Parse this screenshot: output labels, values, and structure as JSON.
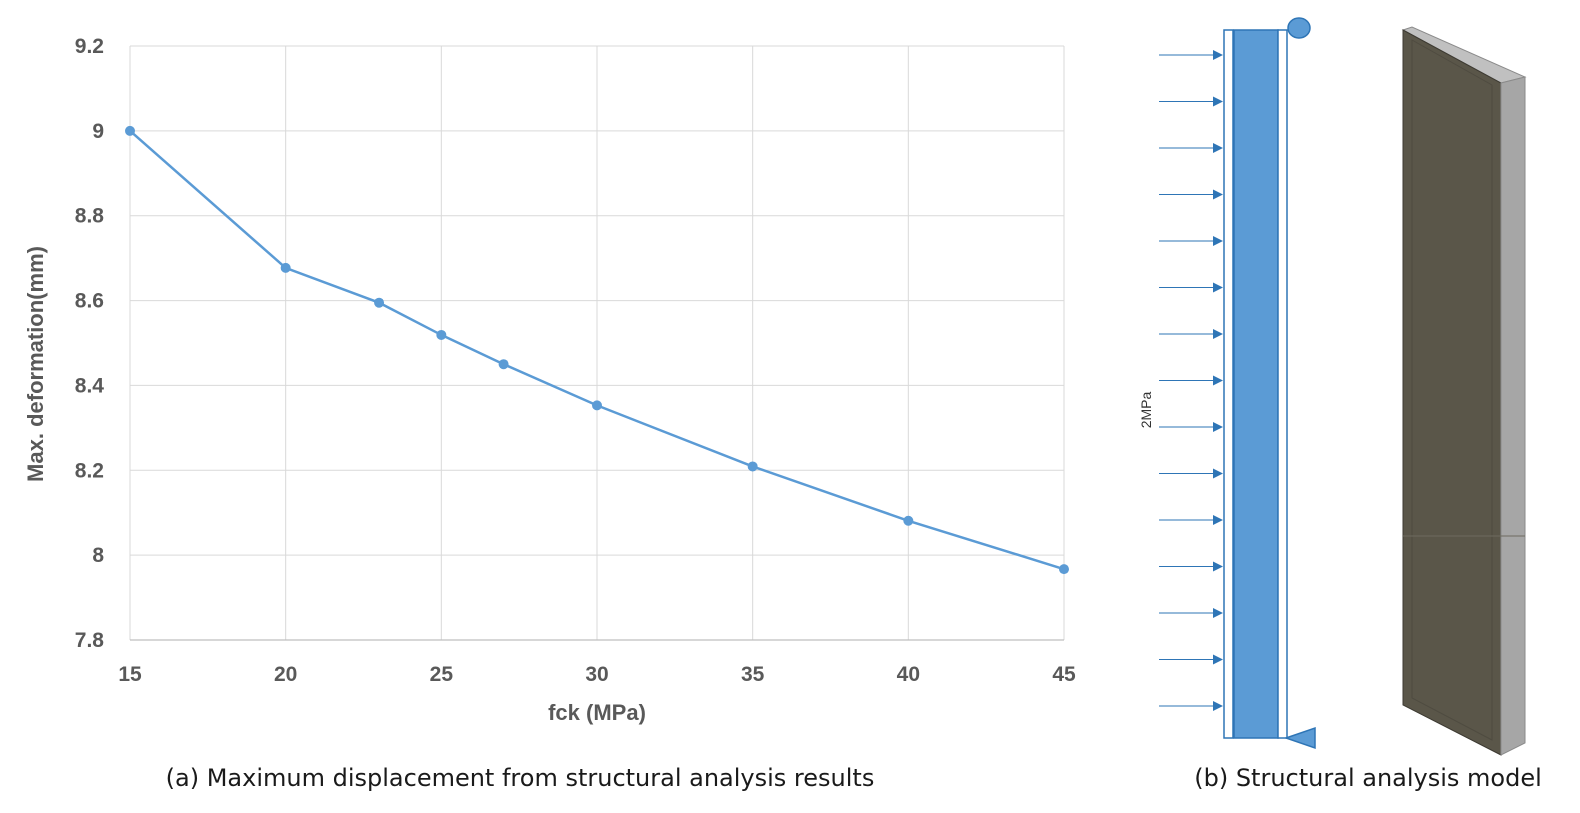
{
  "chart_data": {
    "type": "line",
    "x": [
      15,
      20,
      23,
      25,
      27,
      30,
      35,
      40,
      45
    ],
    "values": [
      9.0,
      8.677,
      8.595,
      8.519,
      8.45,
      8.353,
      8.209,
      8.081,
      7.967
    ],
    "xlabel": "fck (MPa)",
    "ylabel": "Max. deformation(mm)",
    "xlim": [
      15,
      45
    ],
    "ylim": [
      7.8,
      9.2
    ],
    "x_ticks": [
      "15",
      "20",
      "25",
      "30",
      "35",
      "40",
      "45"
    ],
    "y_ticks": [
      "7.8",
      "8",
      "8.2",
      "8.4",
      "8.6",
      "8.8",
      "9",
      "9.2"
    ],
    "grid": true,
    "line_color": "#5b9bd5",
    "grid_color": "#d9d9d9"
  },
  "captions": {
    "left": "(a) Maximum displacement from structural analysis results",
    "right": "(b) Structural analysis model"
  },
  "model": {
    "load_label": "2MPa",
    "arrow_count": 15,
    "colors": {
      "wall": "#5b9bd5",
      "box_front": "#5a5649",
      "box_side": "#a6a6a6",
      "box_top": "#c0c0c0"
    }
  }
}
